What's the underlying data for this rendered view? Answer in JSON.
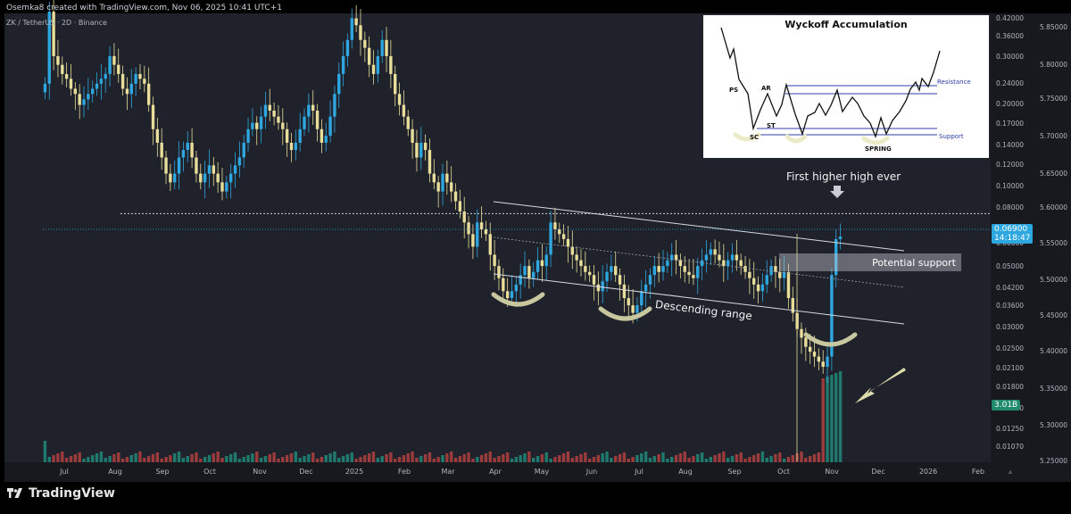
{
  "header": {
    "attribution": "Osemka8 created with TradingView.com, Nov 06, 2025 10:41 UTC+1",
    "symbol": "ZK / TetherUS · 2D · Binance",
    "brand": "TradingView"
  },
  "chart_data": {
    "type": "candlestick",
    "title": "",
    "x_axis_labels": [
      "Jul",
      "Aug",
      "Sep",
      "Oct",
      "Nov",
      "Dec",
      "2025",
      "Feb",
      "Mar",
      "Apr",
      "May",
      "Jun",
      "Jul",
      "Aug",
      "Sep",
      "Oct",
      "Nov",
      "Dec",
      "2026",
      "Feb"
    ],
    "y_axis_labels_left": [
      "0.42000",
      "0.36000",
      "0.30000",
      "0.24000",
      "0.20000",
      "0.17000",
      "0.14000",
      "0.12000",
      "0.10000",
      "0.08000",
      "0.06000",
      "0.05000",
      "0.04200",
      "0.03600",
      "0.03000",
      "0.02500",
      "0.02100",
      "0.01800",
      "0.01500",
      "0.01250",
      "0.01070"
    ],
    "y_axis_labels_right": [
      "5.85000",
      "5.80000",
      "5.75000",
      "5.70000",
      "5.65000",
      "5.60000",
      "5.55000",
      "5.50000",
      "5.45000",
      "5.40000",
      "5.35000",
      "5.30000",
      "5.25000"
    ],
    "price_label": {
      "value": "0.06900",
      "countdown": "14:18:47"
    },
    "volume_label": "3.01B",
    "log_scale": true,
    "up_color": "#2ea7e0",
    "down_color": "#e8dd99",
    "volume_up_color": "#1f7a6d",
    "volume_down_color": "#9b3b3b",
    "approx_closes": [
      0.17,
      0.26,
      0.2,
      0.19,
      0.18,
      0.175,
      0.165,
      0.16,
      0.15,
      0.155,
      0.16,
      0.165,
      0.17,
      0.175,
      0.18,
      0.2,
      0.19,
      0.18,
      0.165,
      0.16,
      0.17,
      0.18,
      0.175,
      0.17,
      0.15,
      0.13,
      0.12,
      0.11,
      0.1,
      0.095,
      0.1,
      0.11,
      0.115,
      0.12,
      0.11,
      0.1,
      0.095,
      0.1,
      0.105,
      0.1,
      0.095,
      0.09,
      0.095,
      0.1,
      0.105,
      0.11,
      0.12,
      0.13,
      0.135,
      0.13,
      0.14,
      0.15,
      0.145,
      0.14,
      0.135,
      0.13,
      0.12,
      0.115,
      0.12,
      0.13,
      0.14,
      0.15,
      0.145,
      0.13,
      0.12,
      0.125,
      0.14,
      0.16,
      0.18,
      0.2,
      0.22,
      0.25,
      0.24,
      0.22,
      0.21,
      0.19,
      0.18,
      0.2,
      0.22,
      0.2,
      0.18,
      0.16,
      0.15,
      0.14,
      0.13,
      0.12,
      0.11,
      0.12,
      0.115,
      0.1,
      0.095,
      0.09,
      0.1,
      0.095,
      0.09,
      0.085,
      0.08,
      0.075,
      0.07,
      0.065,
      0.075,
      0.072,
      0.07,
      0.062,
      0.058,
      0.054,
      0.05,
      0.048,
      0.05,
      0.052,
      0.055,
      0.058,
      0.054,
      0.056,
      0.06,
      0.058,
      0.062,
      0.075,
      0.072,
      0.07,
      0.068,
      0.065,
      0.062,
      0.06,
      0.058,
      0.056,
      0.055,
      0.052,
      0.05,
      0.053,
      0.056,
      0.058,
      0.055,
      0.052,
      0.048,
      0.046,
      0.044,
      0.046,
      0.05,
      0.052,
      0.055,
      0.058,
      0.056,
      0.058,
      0.06,
      0.062,
      0.06,
      0.058,
      0.056,
      0.055,
      0.054,
      0.058,
      0.06,
      0.062,
      0.064,
      0.062,
      0.06,
      0.058,
      0.06,
      0.062,
      0.06,
      0.058,
      0.056,
      0.054,
      0.052,
      0.05,
      0.052,
      0.055,
      0.058,
      0.056,
      0.054,
      0.056,
      0.048,
      0.044,
      0.04,
      0.038,
      0.036,
      0.035,
      0.034,
      0.033,
      0.032,
      0.034,
      0.055,
      0.068,
      0.069
    ],
    "drawn_levels": {
      "dotted_resistance": 0.079
    }
  },
  "annotations": {
    "first_higher_high": "First higher high ever",
    "potential_support": "Potential support",
    "descending_range": "Descending range"
  },
  "inset": {
    "title": "Wyckoff Accumulation",
    "labels": {
      "ps": "PS",
      "ar": "AR",
      "st": "ST",
      "sc": "SC",
      "spring": "SPRING",
      "resistance": "Resistance",
      "support": "Support"
    }
  }
}
